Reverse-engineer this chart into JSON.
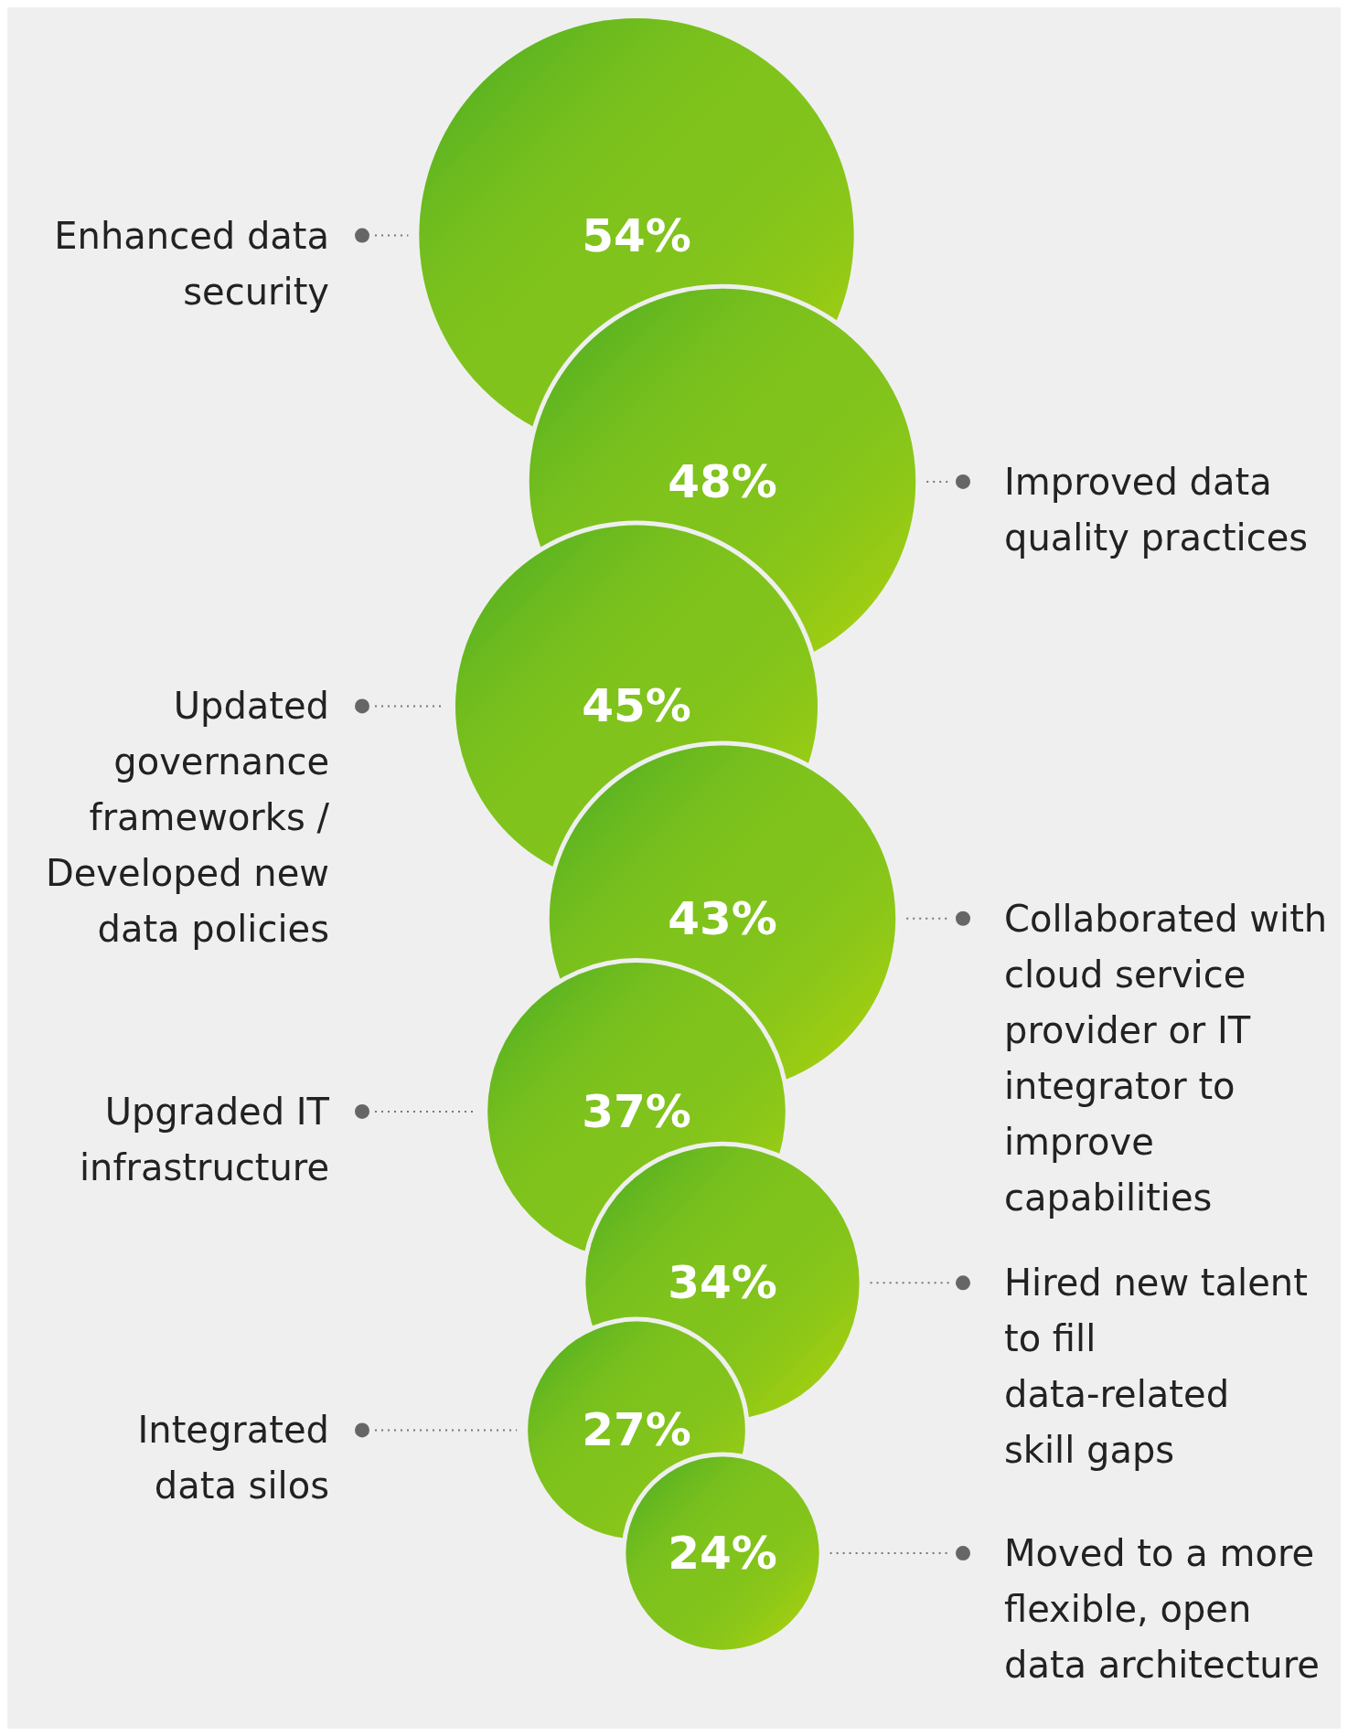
{
  "chart_data": {
    "type": "other",
    "categories": [
      "Enhanced data security",
      "Improved data quality practices",
      "Updated governance frameworks / Developed new data policies",
      "Collaborated with cloud service provider or IT integrator to improve capabilities",
      "Upgraded IT infrastructure",
      "Hired new talent to fill data-related skill gaps",
      "Integrated data silos",
      "Moved to a more flexible, open data architecture"
    ],
    "values": [
      54,
      48,
      45,
      43,
      37,
      34,
      27,
      24
    ],
    "value_labels": [
      "54%",
      "48%",
      "45%",
      "43%",
      "37%",
      "34%",
      "27%",
      "24%"
    ],
    "colors": [
      "#80c31c",
      "#80c31c",
      "#80c31c",
      "#80c31c",
      "#80c31c",
      "#80c31c",
      "#80c31c",
      "#80c31c"
    ]
  }
}
